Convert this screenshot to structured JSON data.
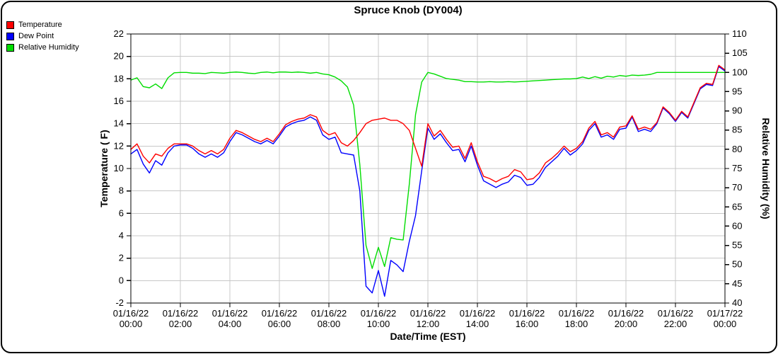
{
  "window": {
    "title": "Spruce Knob (DY004)"
  },
  "chart_data": {
    "type": "line",
    "title": "Spruce Knob (DY004)",
    "xlabel": "Date/Time (EST)",
    "ylabel_left": "Temperature ( F)",
    "ylabel_right": "Relative Humidity (%)",
    "grid": true,
    "legend_position": "top-left",
    "x_range": [
      0,
      24
    ],
    "x_unit_note": "hours after 01/16/22 00:00 EST, 15-min estimates read from plot",
    "x_ticks": [
      0,
      2,
      4,
      6,
      8,
      10,
      12,
      14,
      16,
      18,
      20,
      22,
      24
    ],
    "x_tick_labels": [
      [
        "01/16/22",
        "00:00"
      ],
      [
        "01/16/22",
        "02:00"
      ],
      [
        "01/16/22",
        "04:00"
      ],
      [
        "01/16/22",
        "06:00"
      ],
      [
        "01/16/22",
        "08:00"
      ],
      [
        "01/16/22",
        "10:00"
      ],
      [
        "01/16/22",
        "12:00"
      ],
      [
        "01/16/22",
        "14:00"
      ],
      [
        "01/16/22",
        "16:00"
      ],
      [
        "01/16/22",
        "18:00"
      ],
      [
        "01/16/22",
        "20:00"
      ],
      [
        "01/16/22",
        "22:00"
      ],
      [
        "01/17/22",
        "00:00"
      ]
    ],
    "y_left_range": [
      -2,
      22
    ],
    "y_left_tick_step": 2,
    "y_right_range": [
      40,
      110
    ],
    "y_right_tick_step": 5,
    "x": [
      0,
      0.25,
      0.5,
      0.75,
      1,
      1.25,
      1.5,
      1.75,
      2,
      2.25,
      2.5,
      2.75,
      3,
      3.25,
      3.5,
      3.75,
      4,
      4.25,
      4.5,
      4.75,
      5,
      5.25,
      5.5,
      5.75,
      6,
      6.25,
      6.5,
      6.75,
      7,
      7.25,
      7.5,
      7.75,
      8,
      8.25,
      8.5,
      8.75,
      9,
      9.25,
      9.5,
      9.75,
      10,
      10.25,
      10.5,
      10.75,
      11,
      11.25,
      11.5,
      11.75,
      12,
      12.25,
      12.5,
      12.75,
      13,
      13.25,
      13.5,
      13.75,
      14,
      14.25,
      14.5,
      14.75,
      15,
      15.25,
      15.5,
      15.75,
      16,
      16.25,
      16.5,
      16.75,
      17,
      17.25,
      17.5,
      17.75,
      18,
      18.25,
      18.5,
      18.75,
      19,
      19.25,
      19.5,
      19.75,
      20,
      20.25,
      20.5,
      20.75,
      21,
      21.25,
      21.5,
      21.75,
      22,
      22.25,
      22.5,
      22.75,
      23,
      23.25,
      23.5,
      23.75,
      24
    ],
    "series": [
      {
        "name": "Temperature",
        "color": "#ff0000",
        "axis": "left",
        "values": [
          11.7,
          12.2,
          11.1,
          10.5,
          11.3,
          11.1,
          11.8,
          12.2,
          12.2,
          12.2,
          12,
          11.6,
          11.3,
          11.6,
          11.3,
          11.7,
          12.7,
          13.4,
          13.2,
          12.9,
          12.6,
          12.4,
          12.7,
          12.4,
          13.1,
          13.9,
          14.2,
          14.4,
          14.5,
          14.8,
          14.6,
          13.4,
          13,
          13.2,
          12.3,
          12,
          12.5,
          13.2,
          14,
          14.3,
          14.4,
          14.5,
          14.3,
          14.3,
          14,
          13.4,
          11.8,
          10.2,
          14,
          12.9,
          13.4,
          12.6,
          11.9,
          12,
          10.9,
          12.3,
          10.6,
          9.3,
          9.1,
          8.8,
          9.1,
          9.3,
          9.9,
          9.7,
          9,
          9.1,
          9.6,
          10.5,
          10.9,
          11.4,
          12,
          11.5,
          11.8,
          12.4,
          13.6,
          14.2,
          13,
          13.2,
          12.8,
          13.7,
          13.8,
          14.7,
          13.5,
          13.7,
          13.5,
          14.1,
          15.5,
          15,
          14.3,
          15.1,
          14.6,
          15.9,
          17.2,
          17.6,
          17.5,
          19.2,
          18.8
        ]
      },
      {
        "name": "Dew Point",
        "color": "#0000ff",
        "axis": "left",
        "values": [
          11.3,
          11.7,
          10.4,
          9.6,
          10.7,
          10.3,
          11.4,
          12,
          12.1,
          12.1,
          11.8,
          11.3,
          11,
          11.3,
          11,
          11.4,
          12.4,
          13.2,
          13,
          12.7,
          12.4,
          12.2,
          12.5,
          12.2,
          12.9,
          13.7,
          14,
          14.2,
          14.3,
          14.6,
          14.3,
          13,
          12.6,
          12.8,
          11.4,
          11.3,
          11.2,
          8,
          -0.5,
          -1.1,
          0.9,
          -1.4,
          1.8,
          1.4,
          0.8,
          3.5,
          5.8,
          9.8,
          13.6,
          12.6,
          13.1,
          12.3,
          11.6,
          11.7,
          10.6,
          12,
          10.3,
          8.9,
          8.6,
          8.3,
          8.6,
          8.8,
          9.4,
          9.2,
          8.5,
          8.6,
          9.2,
          10.1,
          10.6,
          11.1,
          11.8,
          11.2,
          11.6,
          12.2,
          13.4,
          14,
          12.8,
          13,
          12.6,
          13.5,
          13.6,
          14.6,
          13.3,
          13.5,
          13.3,
          14,
          15.4,
          14.9,
          14.2,
          15,
          14.5,
          15.8,
          17.1,
          17.5,
          17.4,
          19.1,
          18.7
        ]
      },
      {
        "name": "Relative Humidity",
        "color": "#00dd00",
        "axis": "right",
        "values": [
          98,
          98.6,
          96.3,
          96,
          97,
          95.8,
          98.6,
          99.9,
          100,
          100,
          99.8,
          99.8,
          99.7,
          100,
          99.9,
          99.8,
          100,
          100.1,
          100,
          99.8,
          99.7,
          100,
          100.1,
          99.9,
          100.1,
          100.1,
          100,
          100.1,
          100,
          99.8,
          100,
          99.6,
          99.4,
          98.8,
          97.8,
          96.2,
          91.5,
          76,
          55,
          49,
          54.5,
          49.5,
          57,
          56.6,
          56.4,
          71,
          89,
          97.5,
          100,
          99.6,
          99,
          98.4,
          98.2,
          98,
          97.6,
          97.6,
          97.5,
          97.5,
          97.6,
          97.5,
          97.5,
          97.6,
          97.5,
          97.6,
          97.7,
          97.8,
          97.9,
          98,
          98.1,
          98.2,
          98.3,
          98.3,
          98.4,
          98.8,
          98.4,
          98.9,
          98.5,
          99,
          98.8,
          99.2,
          99,
          99.3,
          99.2,
          99.3,
          99.5,
          100,
          100,
          100,
          100,
          100,
          100,
          100,
          100,
          100,
          100,
          100,
          100
        ]
      }
    ],
    "style": {
      "grid_color": "#c8c8c8",
      "frame_color": "#000000",
      "text_color": "#000000",
      "background": "#ffffff"
    }
  },
  "legend": {
    "items": [
      {
        "label": "Temperature"
      },
      {
        "label": "Dew Point"
      },
      {
        "label": "Relative Humidity"
      }
    ]
  }
}
